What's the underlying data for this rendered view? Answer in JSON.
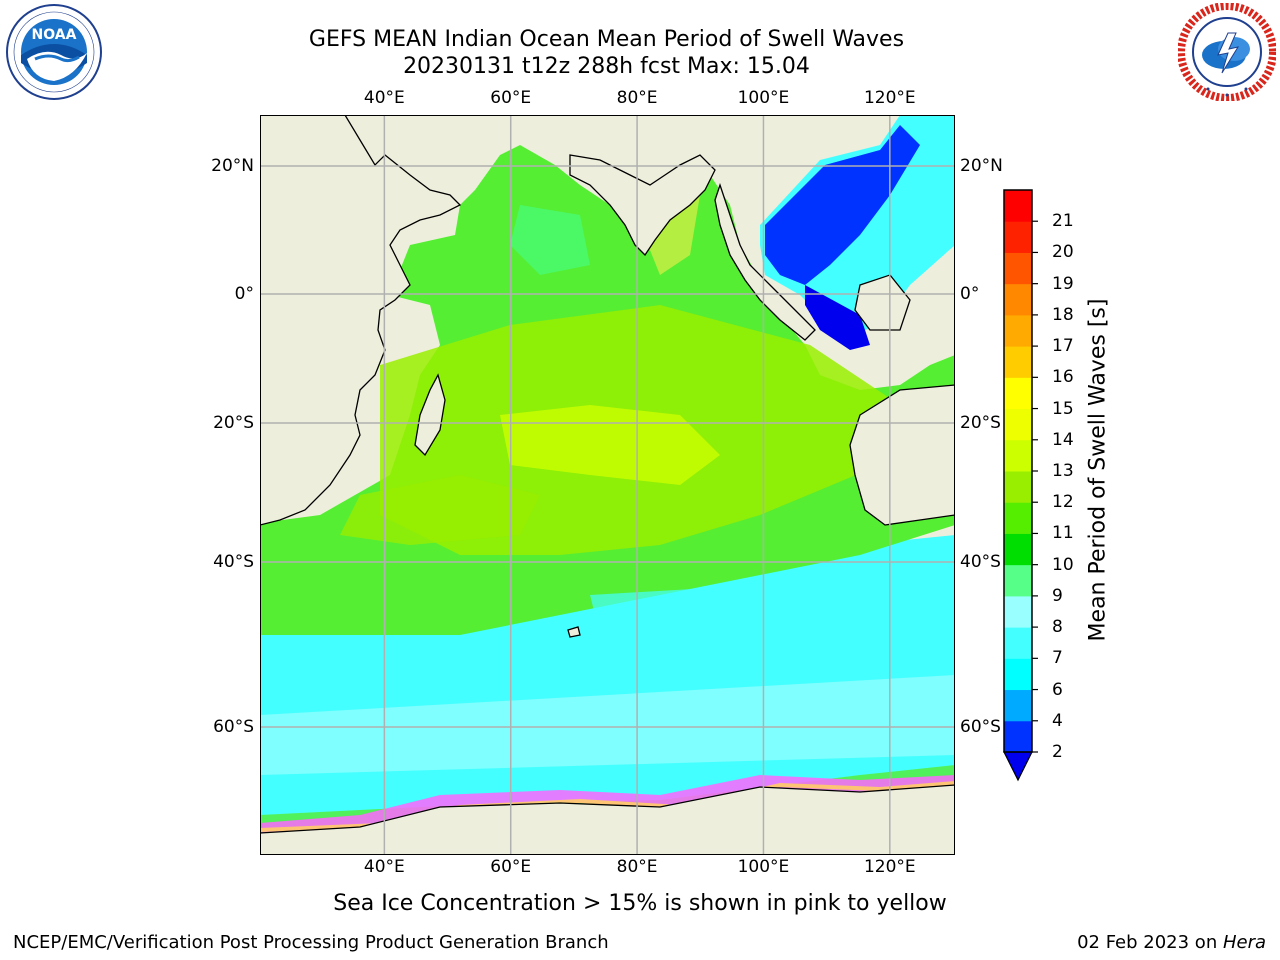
{
  "title": {
    "line1": "GEFS MEAN Indian Ocean Mean Period of Swell Waves",
    "line2": "20230131 t12z 288h fcst   Max: 15.04"
  },
  "logos": {
    "left": {
      "icon": "noaa-logo",
      "text": "NOAA",
      "ring_text": "NATIONAL OCEANIC AND ATMOSPHERIC ADMINISTRATION · U.S. DEPARTMENT OF COMMERCE"
    },
    "right": {
      "icon": "nws-logo",
      "ring_text": "NATIONAL WEATHER SERVICE"
    }
  },
  "map": {
    "lon_range": [
      20,
      130
    ],
    "lat_range": [
      -88,
      28
    ],
    "lon_ticks": [
      {
        "value": 40,
        "label": "40°E"
      },
      {
        "value": 60,
        "label": "60°E"
      },
      {
        "value": 80,
        "label": "80°E"
      },
      {
        "value": 100,
        "label": "100°E"
      },
      {
        "value": 120,
        "label": "120°E"
      }
    ],
    "lat_ticks": [
      {
        "value": 20,
        "label": "20°N"
      },
      {
        "value": 0,
        "label": "0°"
      },
      {
        "value": -20,
        "label": "20°S"
      },
      {
        "value": -40,
        "label": "40°S"
      },
      {
        "value": -60,
        "label": "60°S"
      }
    ],
    "land_color": "#eeeedd",
    "grid": true
  },
  "colorbar": {
    "label": "Mean Period of Swell Waves [s]",
    "levels": [
      2,
      4,
      6,
      7,
      8,
      9,
      10,
      11,
      12,
      13,
      14,
      15,
      16,
      17,
      18,
      19,
      20,
      21
    ],
    "colors": [
      "#0033ff",
      "#00aaff",
      "#00ffff",
      "#44ffff",
      "#99ffff",
      "#55ff88",
      "#00dd00",
      "#55ee00",
      "#99ee00",
      "#ccff00",
      "#eeff00",
      "#ffff00",
      "#ffcc00",
      "#ffaa00",
      "#ff8800",
      "#ff5500",
      "#ff2200",
      "#ff0000"
    ],
    "under_color": "#0000ee",
    "tick_labels": [
      "2",
      "4",
      "6",
      "7",
      "8",
      "9",
      "10",
      "11",
      "12",
      "13",
      "14",
      "15",
      "16",
      "17",
      "18",
      "19",
      "20",
      "21"
    ]
  },
  "note": "Sea Ice Concentration > 15% is shown in pink to yellow",
  "footer": {
    "left": "NCEP/EMC/Verification Post Processing Product Generation Branch",
    "right_prefix": "02 Feb 2023 on ",
    "right_host": "Hera"
  }
}
